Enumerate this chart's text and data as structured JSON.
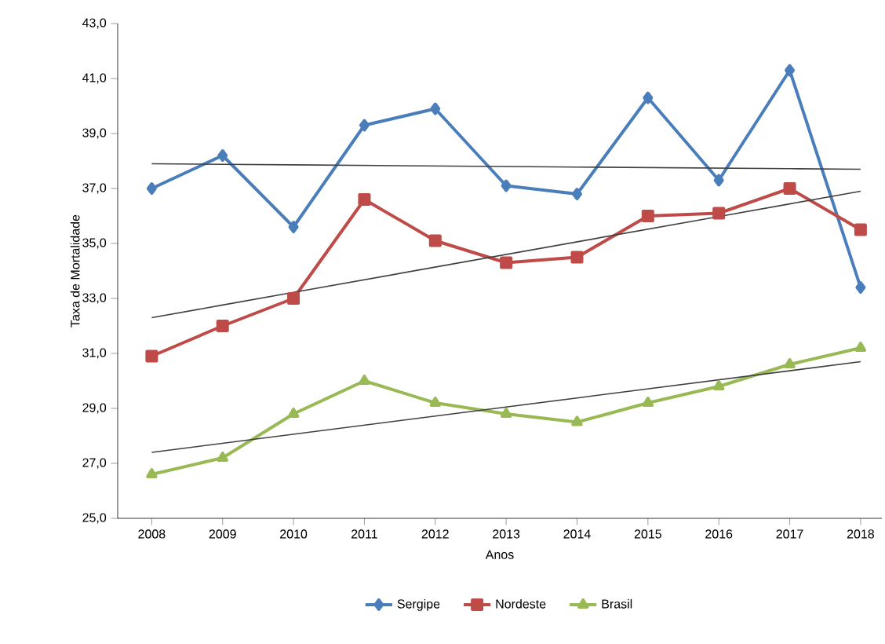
{
  "chart_data": {
    "type": "line",
    "xlabel": "Anos",
    "ylabel": "Taxa de Mortalidade",
    "categories": [
      "2008",
      "2009",
      "2010",
      "2011",
      "2012",
      "2013",
      "2014",
      "2015",
      "2016",
      "2017",
      "2018"
    ],
    "series": [
      {
        "name": "Sergipe",
        "color": "#4a7ebb",
        "marker": "diamond",
        "values": [
          37.0,
          38.2,
          35.6,
          39.3,
          39.9,
          37.1,
          36.8,
          40.3,
          37.3,
          41.3,
          33.4
        ]
      },
      {
        "name": "Nordeste",
        "color": "#be4b48",
        "marker": "square",
        "values": [
          30.9,
          32.0,
          33.0,
          36.6,
          35.1,
          34.3,
          34.5,
          36.0,
          36.1,
          37.0,
          35.5
        ]
      },
      {
        "name": "Brasil",
        "color": "#98b954",
        "marker": "triangle",
        "values": [
          26.6,
          27.2,
          28.8,
          30.0,
          29.2,
          28.8,
          28.5,
          29.2,
          29.8,
          30.6,
          31.2
        ]
      },
      {
        "color": "#404040",
        "marker": "none",
        "values": [
          37.9,
          37.88,
          37.86,
          37.84,
          37.82,
          37.8,
          37.78,
          37.76,
          37.74,
          37.72,
          37.7
        ]
      },
      {
        "color": "#404040",
        "marker": "none",
        "values": [
          32.3,
          32.76,
          33.22,
          33.68,
          34.14,
          34.6,
          35.06,
          35.52,
          35.98,
          36.44,
          36.9
        ]
      },
      {
        "color": "#404040",
        "marker": "none",
        "values": [
          27.4,
          27.73,
          28.06,
          28.39,
          28.72,
          29.05,
          29.38,
          29.71,
          30.04,
          30.37,
          30.7
        ]
      }
    ],
    "ylim": [
      25,
      43
    ],
    "yticks": [
      {
        "value": 25,
        "label": "25,0"
      },
      {
        "value": 27,
        "label": "27,0"
      },
      {
        "value": 29,
        "label": "29,0"
      },
      {
        "value": 31,
        "label": "31,0"
      },
      {
        "value": 33,
        "label": "33,0"
      },
      {
        "value": 35,
        "label": "35,0"
      },
      {
        "value": 37,
        "label": "37,0"
      },
      {
        "value": 39,
        "label": "39,0"
      },
      {
        "value": 41,
        "label": "41,0"
      },
      {
        "value": 43,
        "label": "43,0"
      }
    ],
    "grid": false,
    "legend": "bottom"
  }
}
